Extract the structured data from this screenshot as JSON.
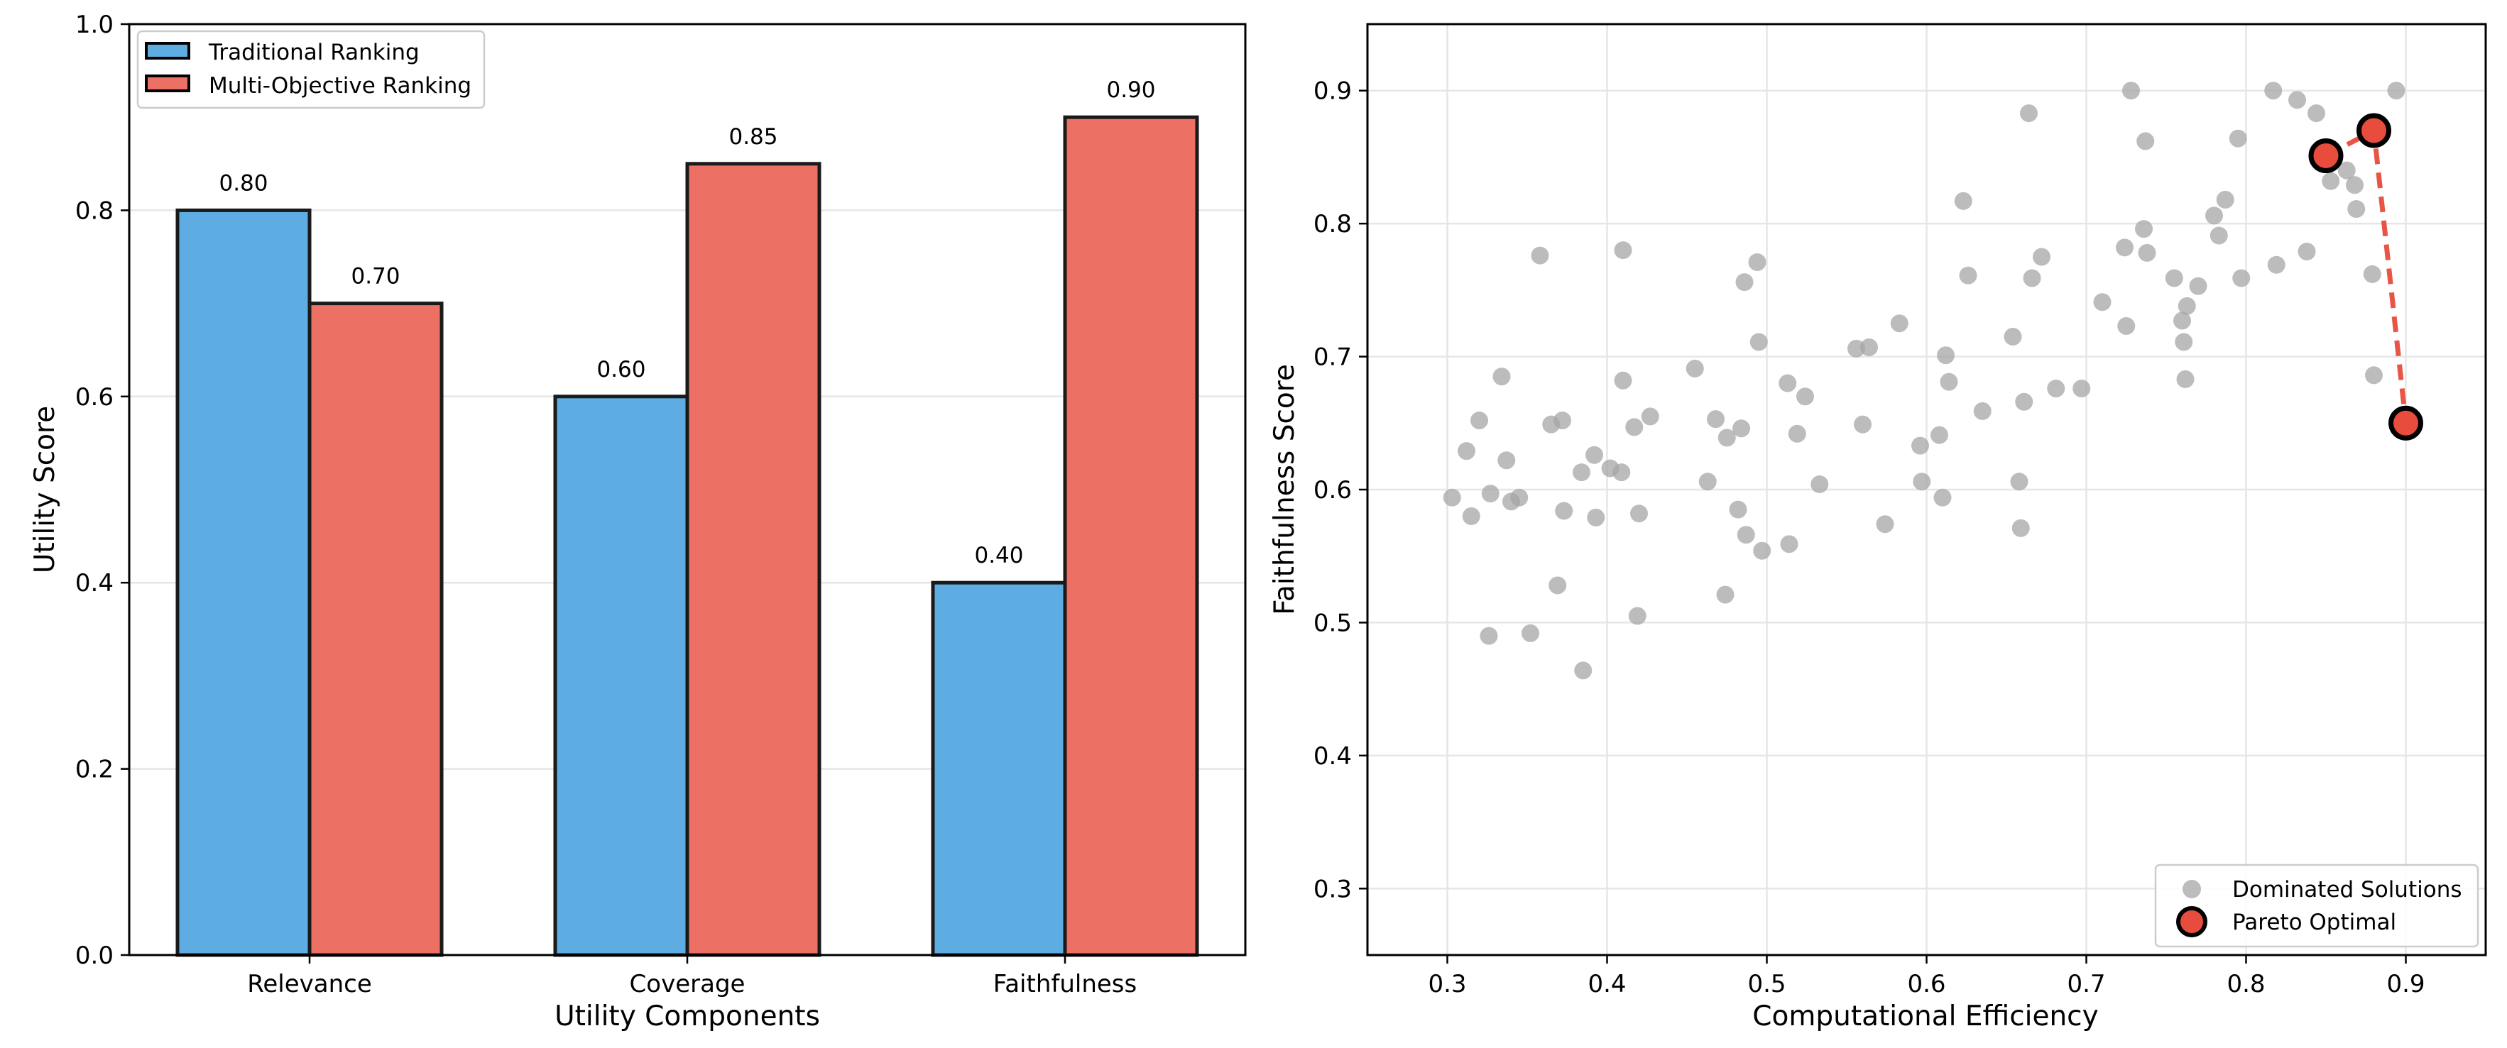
{
  "chart_data": [
    {
      "type": "bar",
      "categories": [
        "Relevance",
        "Coverage",
        "Faithfulness"
      ],
      "series": [
        {
          "name": "Traditional Ranking",
          "values": [
            0.8,
            0.6,
            0.4
          ],
          "value_labels": [
            "0.80",
            "0.60",
            "0.40"
          ]
        },
        {
          "name": "Multi-Objective Ranking",
          "values": [
            0.7,
            0.85,
            0.9
          ],
          "value_labels": [
            "0.70",
            "0.85",
            "0.90"
          ]
        }
      ],
      "title": "",
      "xlabel": "Utility Components",
      "ylabel": "Utility Score",
      "ylim": [
        0,
        1.0
      ],
      "yticks": [
        0.0,
        0.2,
        0.4,
        0.6,
        0.8,
        1.0
      ],
      "ytick_labels": [
        "0.0",
        "0.2",
        "0.4",
        "0.6",
        "0.8",
        "1.0"
      ],
      "grid": "horizontal",
      "legend": "top-left",
      "colors": [
        "#5dade2",
        "#ec7063"
      ]
    },
    {
      "type": "scatter",
      "title": "",
      "xlabel": "Computational Efficiency",
      "ylabel": "Faithfulness Score",
      "xlim": [
        0.25,
        0.95
      ],
      "ylim": [
        0.25,
        0.95
      ],
      "xticks": [
        0.3,
        0.4,
        0.5,
        0.6,
        0.7,
        0.8,
        0.9
      ],
      "xtick_labels": [
        "0.3",
        "0.4",
        "0.5",
        "0.6",
        "0.7",
        "0.8",
        "0.9"
      ],
      "yticks": [
        0.3,
        0.4,
        0.5,
        0.6,
        0.7,
        0.8,
        0.9
      ],
      "ytick_labels": [
        "0.3",
        "0.4",
        "0.5",
        "0.6",
        "0.7",
        "0.8",
        "0.9"
      ],
      "grid": "both",
      "legend": "bottom-right",
      "series": [
        {
          "name": "Dominated Solutions",
          "color": "#a6a6a6",
          "points": [
            [
              0.303,
              0.594
            ],
            [
              0.312,
              0.629
            ],
            [
              0.315,
              0.58
            ],
            [
              0.32,
              0.652
            ],
            [
              0.326,
              0.49
            ],
            [
              0.327,
              0.597
            ],
            [
              0.334,
              0.685
            ],
            [
              0.337,
              0.622
            ],
            [
              0.34,
              0.591
            ],
            [
              0.345,
              0.594
            ],
            [
              0.352,
              0.492
            ],
            [
              0.358,
              0.776
            ],
            [
              0.365,
              0.649
            ],
            [
              0.369,
              0.528
            ],
            [
              0.372,
              0.652
            ],
            [
              0.373,
              0.584
            ],
            [
              0.384,
              0.613
            ],
            [
              0.385,
              0.464
            ],
            [
              0.392,
              0.626
            ],
            [
              0.393,
              0.579
            ],
            [
              0.402,
              0.616
            ],
            [
              0.409,
              0.613
            ],
            [
              0.41,
              0.682
            ],
            [
              0.41,
              0.78
            ],
            [
              0.417,
              0.647
            ],
            [
              0.419,
              0.505
            ],
            [
              0.42,
              0.582
            ],
            [
              0.427,
              0.655
            ],
            [
              0.455,
              0.691
            ],
            [
              0.463,
              0.606
            ],
            [
              0.468,
              0.653
            ],
            [
              0.474,
              0.521
            ],
            [
              0.475,
              0.639
            ],
            [
              0.482,
              0.585
            ],
            [
              0.484,
              0.646
            ],
            [
              0.486,
              0.756
            ],
            [
              0.487,
              0.566
            ],
            [
              0.494,
              0.771
            ],
            [
              0.495,
              0.711
            ],
            [
              0.497,
              0.554
            ],
            [
              0.513,
              0.68
            ],
            [
              0.514,
              0.559
            ],
            [
              0.519,
              0.642
            ],
            [
              0.524,
              0.67
            ],
            [
              0.533,
              0.604
            ],
            [
              0.556,
              0.706
            ],
            [
              0.56,
              0.649
            ],
            [
              0.564,
              0.707
            ],
            [
              0.574,
              0.574
            ],
            [
              0.583,
              0.725
            ],
            [
              0.596,
              0.633
            ],
            [
              0.597,
              0.606
            ],
            [
              0.608,
              0.641
            ],
            [
              0.61,
              0.594
            ],
            [
              0.612,
              0.701
            ],
            [
              0.614,
              0.681
            ],
            [
              0.623,
              0.817
            ],
            [
              0.626,
              0.761
            ],
            [
              0.635,
              0.659
            ],
            [
              0.654,
              0.715
            ],
            [
              0.658,
              0.606
            ],
            [
              0.659,
              0.571
            ],
            [
              0.661,
              0.666
            ],
            [
              0.664,
              0.883
            ],
            [
              0.666,
              0.759
            ],
            [
              0.672,
              0.775
            ],
            [
              0.681,
              0.676
            ],
            [
              0.697,
              0.676
            ],
            [
              0.71,
              0.741
            ],
            [
              0.724,
              0.782
            ],
            [
              0.725,
              0.723
            ],
            [
              0.728,
              0.9
            ],
            [
              0.736,
              0.796
            ],
            [
              0.737,
              0.862
            ],
            [
              0.738,
              0.778
            ],
            [
              0.755,
              0.759
            ],
            [
              0.76,
              0.727
            ],
            [
              0.761,
              0.711
            ],
            [
              0.762,
              0.683
            ],
            [
              0.763,
              0.738
            ],
            [
              0.77,
              0.753
            ],
            [
              0.78,
              0.806
            ],
            [
              0.783,
              0.791
            ],
            [
              0.787,
              0.818
            ],
            [
              0.795,
              0.864
            ],
            [
              0.797,
              0.759
            ],
            [
              0.817,
              0.9
            ],
            [
              0.819,
              0.769
            ],
            [
              0.832,
              0.893
            ],
            [
              0.838,
              0.779
            ],
            [
              0.844,
              0.883
            ],
            [
              0.853,
              0.832
            ],
            [
              0.863,
              0.84
            ],
            [
              0.868,
              0.829
            ],
            [
              0.869,
              0.811
            ],
            [
              0.879,
              0.762
            ],
            [
              0.88,
              0.686
            ],
            [
              0.894,
              0.9
            ]
          ]
        },
        {
          "name": "Pareto Optimal",
          "color": "#e74c3c",
          "edge_color": "#000000",
          "points": [
            [
              0.85,
              0.851
            ],
            [
              0.88,
              0.87
            ],
            [
              0.9,
              0.65
            ]
          ],
          "front_line": {
            "style": "dashed",
            "color": "#e74c3c"
          }
        }
      ]
    }
  ]
}
